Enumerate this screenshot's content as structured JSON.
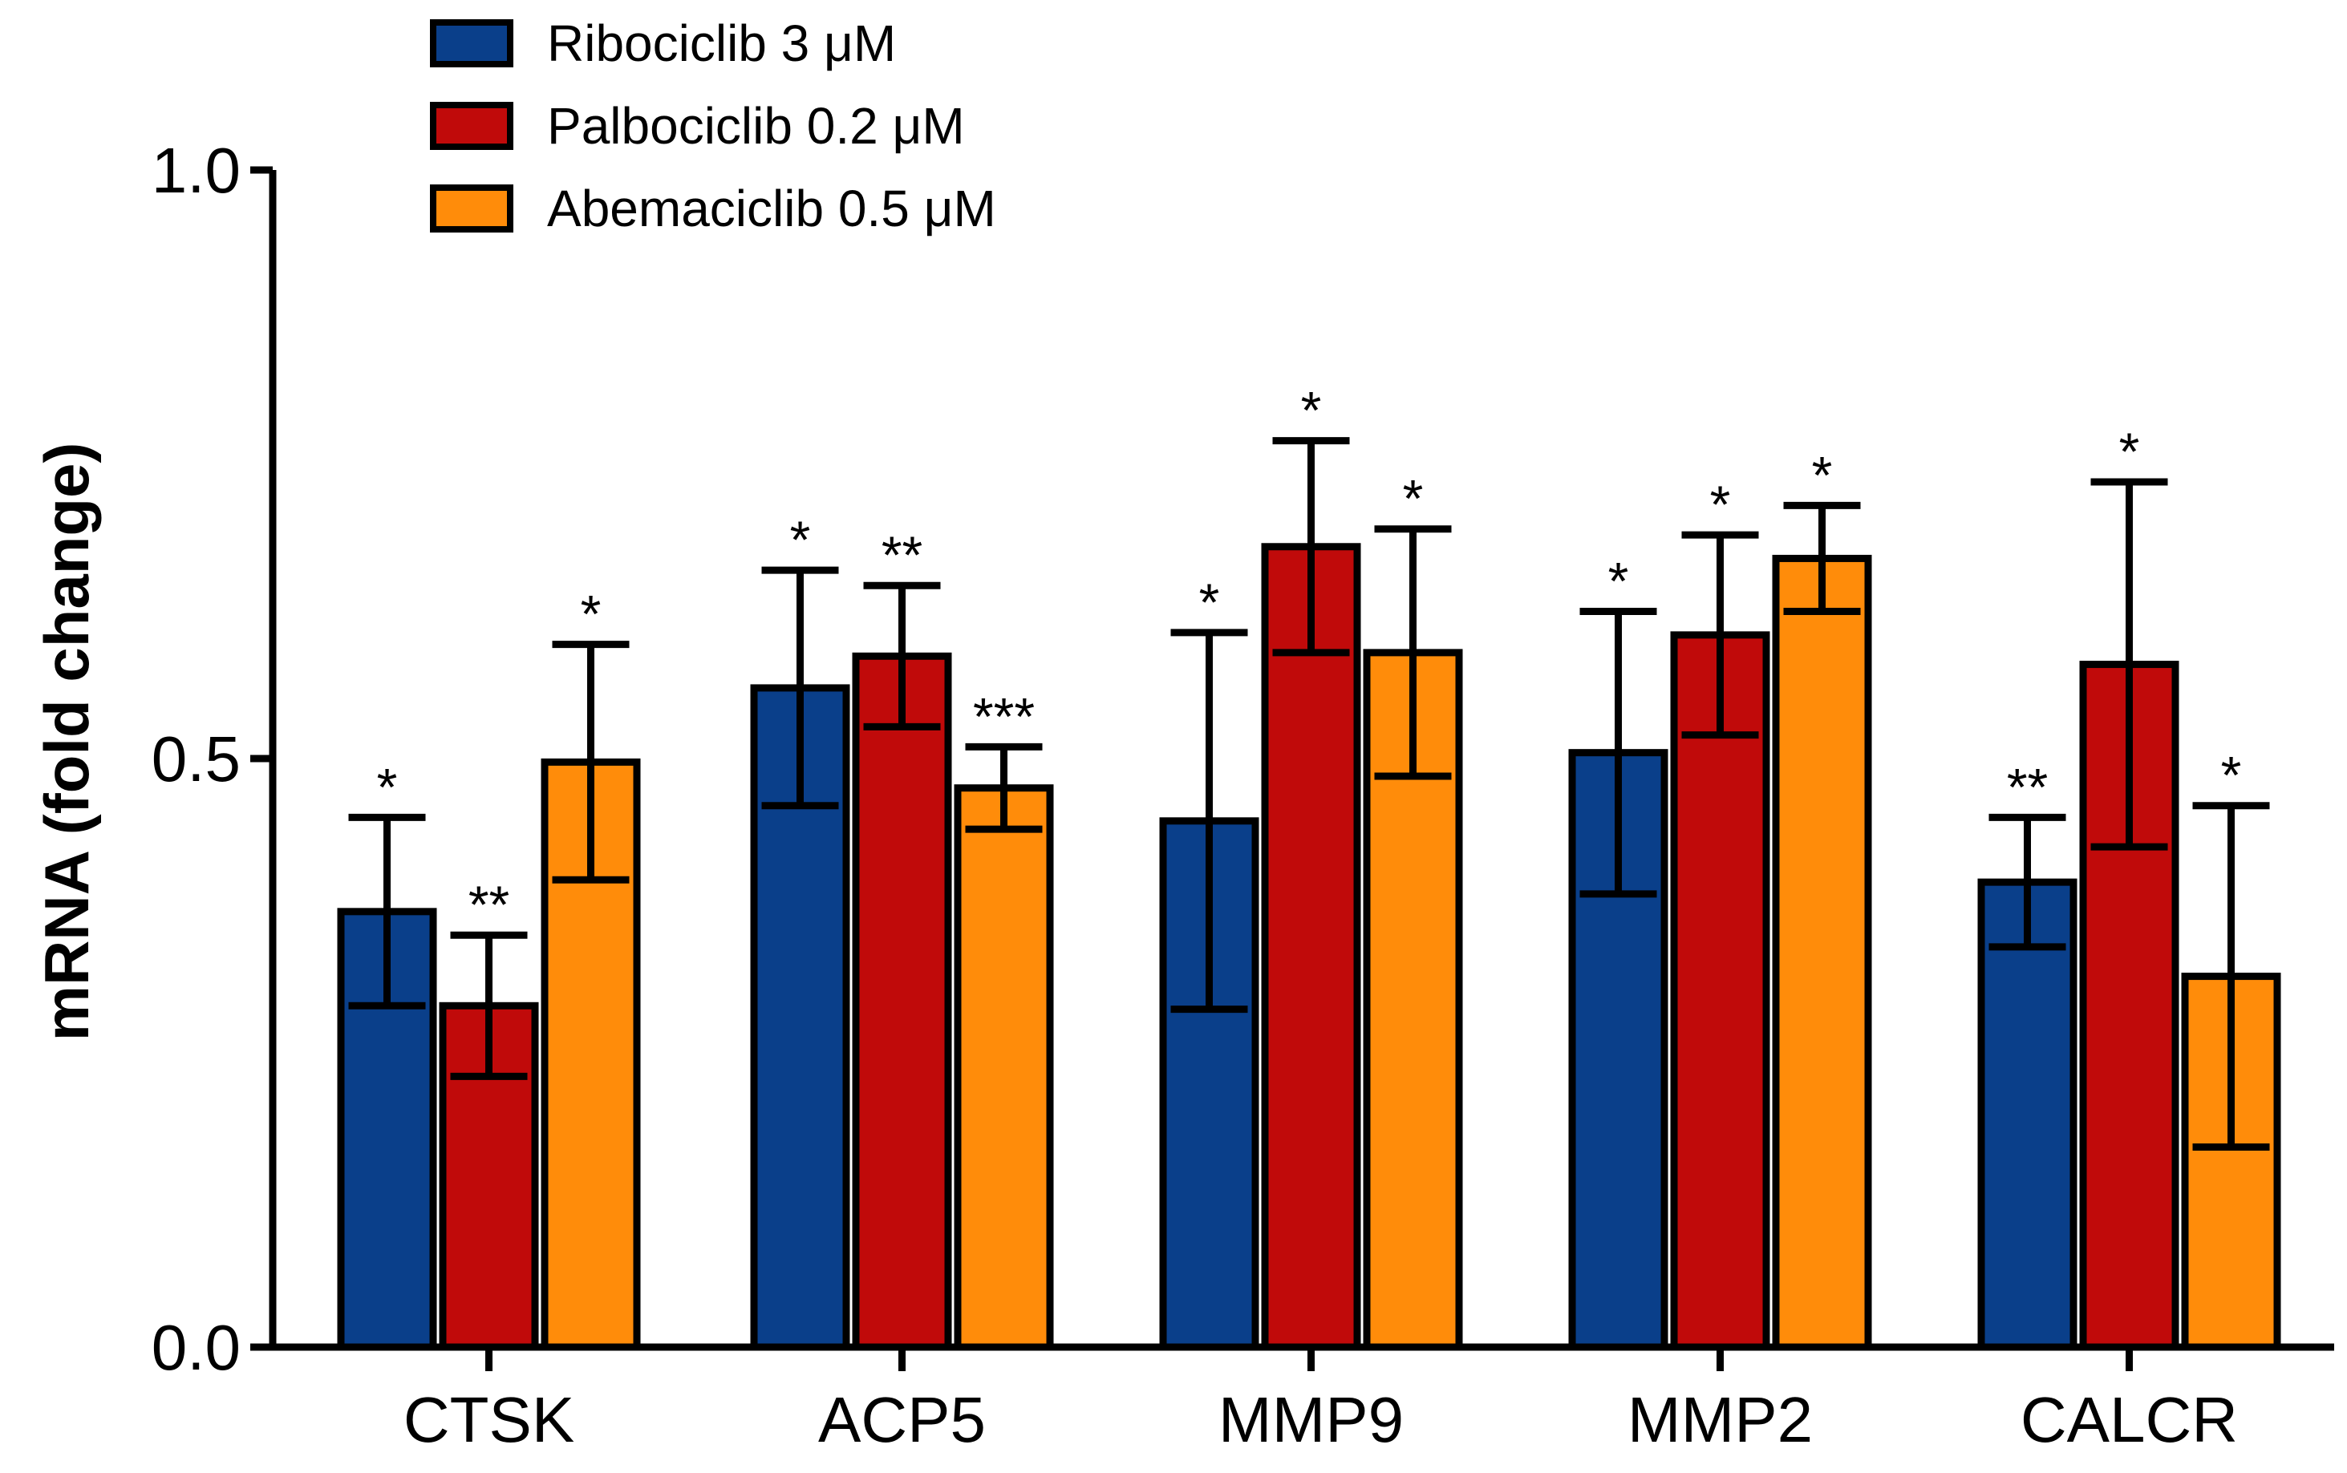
{
  "chart_data": {
    "type": "bar",
    "title": "",
    "xlabel": "",
    "ylabel": "mRNA (fold change)",
    "ylim": [
      0,
      1.0
    ],
    "yticks": [
      "0.0",
      "0.5",
      "1.0"
    ],
    "grid": false,
    "legend_position": "top-left",
    "categories": [
      "CTSK",
      "ACP5",
      "MMP9",
      "MMP2",
      "CALCR"
    ],
    "series": [
      {
        "name": "Ribociclib 3 μM",
        "color": "#0a3f8a",
        "values": [
          0.37,
          0.56,
          0.447,
          0.505,
          0.395
        ],
        "errors": [
          0.08,
          0.1,
          0.16,
          0.12,
          0.055
        ],
        "significance": [
          "*",
          "*",
          "*",
          "*",
          "**"
        ]
      },
      {
        "name": "Palbociclib 0.2 μM",
        "color": "#c00a0a",
        "values": [
          0.29,
          0.587,
          0.68,
          0.605,
          0.58
        ],
        "errors": [
          0.06,
          0.06,
          0.09,
          0.085,
          0.155
        ],
        "significance": [
          "**",
          "**",
          "*",
          "*",
          "*"
        ]
      },
      {
        "name": "Abemaciclib 0.5 μM",
        "color": "#ff8c0a",
        "values": [
          0.497,
          0.475,
          0.59,
          0.67,
          0.315
        ],
        "errors": [
          0.1,
          0.035,
          0.105,
          0.045,
          0.145
        ],
        "significance": [
          "*",
          "***",
          "*",
          "*",
          "*"
        ]
      }
    ]
  }
}
